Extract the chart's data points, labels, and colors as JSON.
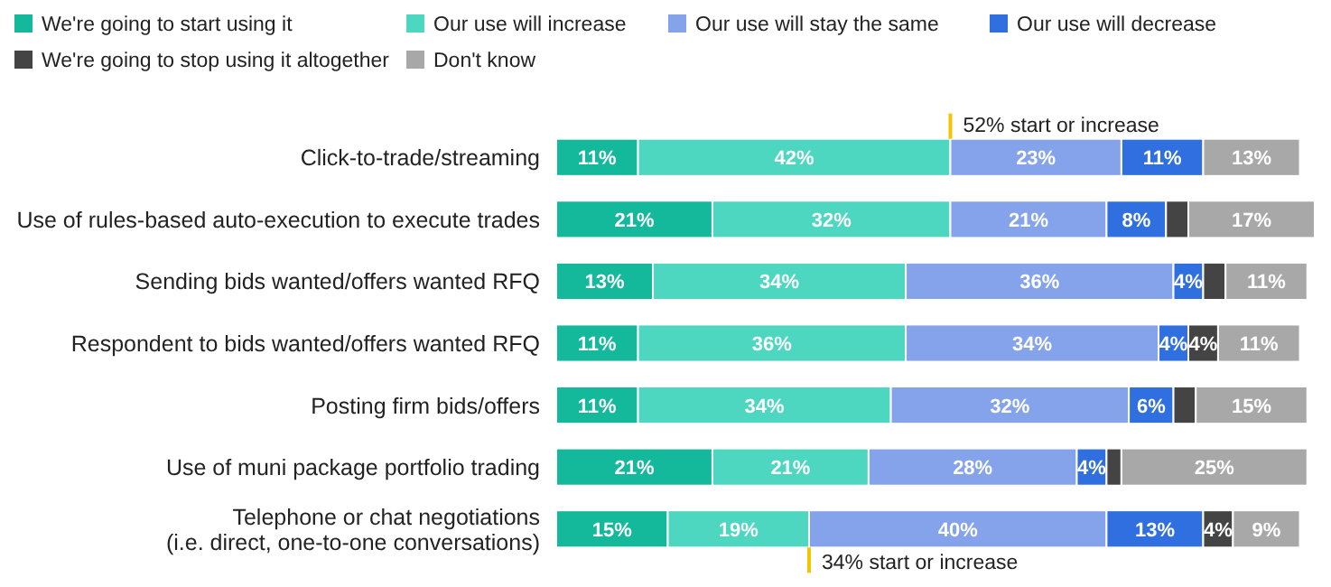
{
  "chart_data": {
    "type": "bar",
    "orientation": "horizontal",
    "stacked": true,
    "legend": "top left",
    "categories": [
      "Click-to-trade/streaming",
      "Use of rules-based auto-execution to execute trades",
      "Sending bids wanted/offers wanted RFQ",
      "Respondent to bids wanted/offers wanted RFQ",
      "Posting firm bids/offers",
      "Use of muni package portfolio trading",
      "Telephone or chat negotiations\n(i.e. direct, one-to-one conversations)"
    ],
    "series": [
      {
        "name": "We're going to start using it",
        "color": "#13b99a",
        "values": [
          11,
          21,
          13,
          11,
          11,
          21,
          15
        ],
        "value_labels": [
          "11%",
          "21%",
          "13%",
          "11%",
          "11%",
          "21%",
          "15%"
        ]
      },
      {
        "name": "Our use will increase",
        "color": "#4dd6c0",
        "values": [
          42,
          32,
          34,
          36,
          34,
          21,
          19
        ],
        "value_labels": [
          "42%",
          "32%",
          "34%",
          "36%",
          "34%",
          "21%",
          "19%"
        ]
      },
      {
        "name": "Our use will stay the same",
        "color": "#84a3ea",
        "values": [
          23,
          21,
          36,
          34,
          32,
          28,
          40
        ],
        "value_labels": [
          "23%",
          "21%",
          "36%",
          "34%",
          "32%",
          "28%",
          "40%"
        ]
      },
      {
        "name": "Our use will decrease",
        "color": "#2f6fe0",
        "values": [
          11,
          8,
          4,
          4,
          6,
          4,
          13
        ],
        "value_labels": [
          "11%",
          "8%",
          "4%",
          "4%",
          "6%",
          "4%",
          "13%"
        ]
      },
      {
        "name": "We're going to stop using it altogether",
        "color": "#444444",
        "values": [
          0,
          3,
          3,
          4,
          3,
          2,
          4
        ],
        "value_labels": [
          null,
          null,
          null,
          "4%",
          null,
          null,
          "4%"
        ]
      },
      {
        "name": "Don't know",
        "color": "#a8a8a8",
        "values": [
          13,
          17,
          11,
          11,
          15,
          25,
          9
        ],
        "value_labels": [
          "13%",
          "17%",
          "11%",
          "11%",
          "15%",
          "25%",
          "9%"
        ]
      }
    ],
    "annotations": [
      "52% start or increase",
      "34% start or increase"
    ]
  }
}
